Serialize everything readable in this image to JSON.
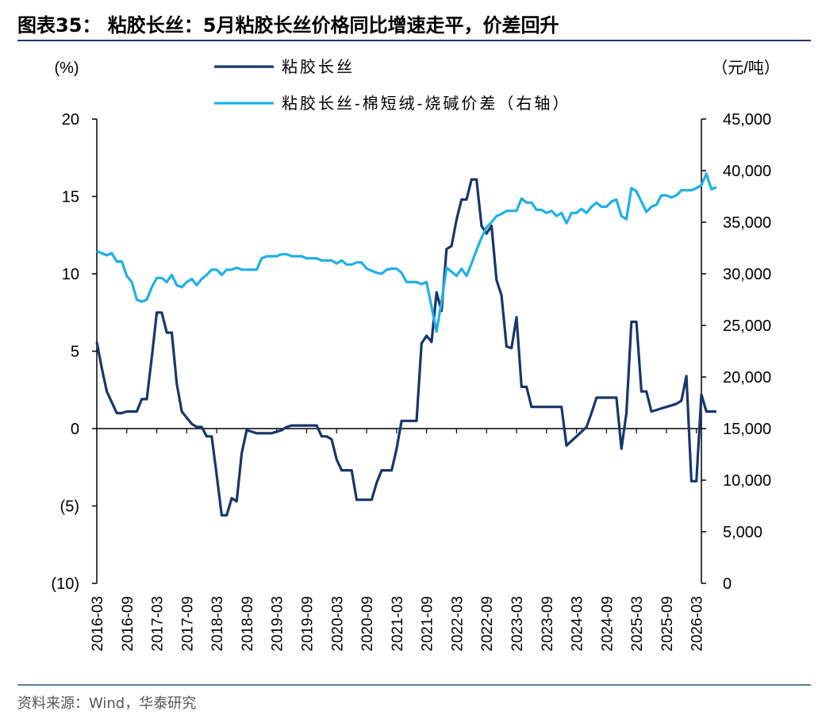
{
  "title": "图表35：  粘胶长丝：5月粘胶长丝价格同比增速走平，价差回升",
  "source": "资料来源：Wind，华泰研究",
  "colors": {
    "series1": "#17376b",
    "series2": "#1fb0e6",
    "axis": "#000000"
  },
  "chart_data": {
    "type": "line",
    "left_unit": "(%)",
    "right_unit": "（元/吨）",
    "ylim_left": [
      -10,
      20
    ],
    "yticks_left": [
      -10,
      -5,
      0,
      5,
      10,
      15,
      20
    ],
    "yticklabels_left": [
      "(10)",
      "(5)",
      "0",
      "5",
      "10",
      "15",
      "20"
    ],
    "ylim_right": [
      0,
      45000
    ],
    "yticks_right": [
      0,
      5000,
      10000,
      15000,
      20000,
      25000,
      30000,
      35000,
      40000,
      45000
    ],
    "yticklabels_right": [
      "0",
      "5,000",
      "10,000",
      "15,000",
      "20,000",
      "25,000",
      "30,000",
      "35,000",
      "40,000",
      "45,000"
    ],
    "x_start": "2016-03",
    "x_end": "2026-04",
    "xticklabels": [
      "2016-03",
      "2016-09",
      "2017-03",
      "2017-09",
      "2018-03",
      "2018-09",
      "2019-03",
      "2019-09",
      "2020-03",
      "2020-09",
      "2021-03",
      "2021-09",
      "2022-03",
      "2022-09",
      "2023-03",
      "2023-09",
      "2024-03",
      "2024-09",
      "2025-03",
      "2025-09",
      "2026-03"
    ],
    "series": [
      {
        "name": "粘胶长丝",
        "axis": "left",
        "points": [
          [
            "2016-03",
            5.6
          ],
          [
            "2016-04",
            3.9
          ],
          [
            "2016-05",
            2.4
          ],
          [
            "2016-06",
            1.7
          ],
          [
            "2016-07",
            1.0
          ],
          [
            "2016-08",
            1.0
          ],
          [
            "2016-09",
            1.1
          ],
          [
            "2016-10",
            1.1
          ],
          [
            "2016-11",
            1.1
          ],
          [
            "2016-12",
            1.9
          ],
          [
            "2017-01",
            1.9
          ],
          [
            "2017-02",
            4.6
          ],
          [
            "2017-03",
            7.5
          ],
          [
            "2017-04",
            7.5
          ],
          [
            "2017-05",
            6.2
          ],
          [
            "2017-06",
            6.2
          ],
          [
            "2017-07",
            2.9
          ],
          [
            "2017-08",
            1.1
          ],
          [
            "2017-09",
            0.7
          ],
          [
            "2017-10",
            0.3
          ],
          [
            "2017-11",
            0.1
          ],
          [
            "2017-12",
            0.1
          ],
          [
            "2018-01",
            -0.5
          ],
          [
            "2018-02",
            -0.5
          ],
          [
            "2018-03",
            -3.0
          ],
          [
            "2018-04",
            -5.6
          ],
          [
            "2018-05",
            -5.6
          ],
          [
            "2018-06",
            -4.5
          ],
          [
            "2018-07",
            -4.7
          ],
          [
            "2018-08",
            -1.6
          ],
          [
            "2018-09",
            -0.1
          ],
          [
            "2018-10",
            -0.2
          ],
          [
            "2018-11",
            -0.3
          ],
          [
            "2018-12",
            -0.3
          ],
          [
            "2019-01",
            -0.3
          ],
          [
            "2019-02",
            -0.3
          ],
          [
            "2019-03",
            -0.2
          ],
          [
            "2019-04",
            -0.1
          ],
          [
            "2019-05",
            0.1
          ],
          [
            "2019-06",
            0.2
          ],
          [
            "2019-07",
            0.2
          ],
          [
            "2019-08",
            0.2
          ],
          [
            "2019-09",
            0.2
          ],
          [
            "2019-10",
            0.2
          ],
          [
            "2019-11",
            0.2
          ],
          [
            "2019-12",
            -0.5
          ],
          [
            "2020-01",
            -0.5
          ],
          [
            "2020-02",
            -0.7
          ],
          [
            "2020-03",
            -2.0
          ],
          [
            "2020-04",
            -2.7
          ],
          [
            "2020-05",
            -2.7
          ],
          [
            "2020-06",
            -2.7
          ],
          [
            "2020-07",
            -4.6
          ],
          [
            "2020-08",
            -4.6
          ],
          [
            "2020-09",
            -4.6
          ],
          [
            "2020-10",
            -4.6
          ],
          [
            "2020-11",
            -3.5
          ],
          [
            "2020-12",
            -2.7
          ],
          [
            "2021-01",
            -2.7
          ],
          [
            "2021-02",
            -2.7
          ],
          [
            "2021-03",
            -1.3
          ],
          [
            "2021-04",
            0.5
          ],
          [
            "2021-05",
            0.5
          ],
          [
            "2021-06",
            0.5
          ],
          [
            "2021-07",
            0.5
          ],
          [
            "2021-08",
            5.5
          ],
          [
            "2021-09",
            6.0
          ],
          [
            "2021-10",
            5.6
          ],
          [
            "2021-11",
            8.8
          ],
          [
            "2021-12",
            7.6
          ],
          [
            "2022-01",
            11.6
          ],
          [
            "2022-02",
            11.8
          ],
          [
            "2022-03",
            13.5
          ],
          [
            "2022-04",
            14.8
          ],
          [
            "2022-05",
            14.8
          ],
          [
            "2022-06",
            16.1
          ],
          [
            "2022-07",
            16.1
          ],
          [
            "2022-08",
            13.1
          ],
          [
            "2022-09",
            12.6
          ],
          [
            "2022-10",
            13.1
          ],
          [
            "2022-11",
            9.6
          ],
          [
            "2022-12",
            8.6
          ],
          [
            "2023-01",
            5.3
          ],
          [
            "2023-02",
            5.2
          ],
          [
            "2023-03",
            7.2
          ],
          [
            "2023-04",
            2.7
          ],
          [
            "2023-05",
            2.7
          ],
          [
            "2023-06",
            1.4
          ],
          [
            "2023-07",
            1.4
          ],
          [
            "2023-08",
            1.4
          ],
          [
            "2023-09",
            1.4
          ],
          [
            "2023-10",
            1.4
          ],
          [
            "2023-11",
            1.4
          ],
          [
            "2023-12",
            1.4
          ],
          [
            "2024-01",
            -1.1
          ],
          [
            "2024-02",
            -0.8
          ],
          [
            "2024-03",
            -0.5
          ],
          [
            "2024-04",
            -0.2
          ],
          [
            "2024-05",
            0.1
          ],
          [
            "2024-06",
            1.0
          ],
          [
            "2024-07",
            2.0
          ],
          [
            "2024-08",
            2.0
          ],
          [
            "2024-09",
            2.0
          ],
          [
            "2024-10",
            2.0
          ],
          [
            "2024-11",
            2.0
          ],
          [
            "2024-12",
            -1.3
          ],
          [
            "2025-01",
            1.0
          ],
          [
            "2025-02",
            6.9
          ],
          [
            "2025-03",
            6.9
          ],
          [
            "2025-04",
            2.4
          ],
          [
            "2025-05",
            2.4
          ],
          [
            "2025-06",
            1.1
          ],
          [
            "2025-07",
            1.2
          ],
          [
            "2025-08",
            1.3
          ],
          [
            "2025-09",
            1.4
          ],
          [
            "2025-10",
            1.5
          ],
          [
            "2025-11",
            1.6
          ],
          [
            "2025-12",
            1.8
          ],
          [
            "2026-01",
            3.4
          ],
          [
            "2026-02",
            -3.4
          ],
          [
            "2026-03",
            -3.4
          ],
          [
            "2026-04",
            2.2
          ],
          [
            "2026-05",
            1.1
          ],
          [
            "2026-06",
            1.1
          ],
          [
            "2026-07",
            1.1
          ]
        ]
      },
      {
        "name": "粘胶长丝-棉短绒-烧碱价差（右轴）",
        "axis": "right",
        "points": [
          [
            "2016-03",
            32200
          ],
          [
            "2016-04",
            32000
          ],
          [
            "2016-05",
            31800
          ],
          [
            "2016-06",
            32000
          ],
          [
            "2016-07",
            31200
          ],
          [
            "2016-08",
            31200
          ],
          [
            "2016-09",
            29800
          ],
          [
            "2016-10",
            29200
          ],
          [
            "2016-11",
            27500
          ],
          [
            "2016-12",
            27300
          ],
          [
            "2017-01",
            27500
          ],
          [
            "2017-02",
            28700
          ],
          [
            "2017-03",
            29600
          ],
          [
            "2017-04",
            29600
          ],
          [
            "2017-05",
            29200
          ],
          [
            "2017-06",
            29900
          ],
          [
            "2017-07",
            28900
          ],
          [
            "2017-08",
            28700
          ],
          [
            "2017-09",
            29200
          ],
          [
            "2017-10",
            29500
          ],
          [
            "2017-11",
            28900
          ],
          [
            "2017-12",
            29500
          ],
          [
            "2018-01",
            29900
          ],
          [
            "2018-02",
            30400
          ],
          [
            "2018-03",
            30400
          ],
          [
            "2018-04",
            29900
          ],
          [
            "2018-05",
            30400
          ],
          [
            "2018-06",
            30400
          ],
          [
            "2018-07",
            30600
          ],
          [
            "2018-08",
            30400
          ],
          [
            "2018-09",
            30400
          ],
          [
            "2018-10",
            30400
          ],
          [
            "2018-11",
            30400
          ],
          [
            "2018-12",
            31500
          ],
          [
            "2019-01",
            31700
          ],
          [
            "2019-02",
            31700
          ],
          [
            "2019-03",
            31700
          ],
          [
            "2019-04",
            31900
          ],
          [
            "2019-05",
            31900
          ],
          [
            "2019-06",
            31700
          ],
          [
            "2019-07",
            31700
          ],
          [
            "2019-08",
            31700
          ],
          [
            "2019-09",
            31500
          ],
          [
            "2019-10",
            31500
          ],
          [
            "2019-11",
            31500
          ],
          [
            "2019-12",
            31300
          ],
          [
            "2020-01",
            31300
          ],
          [
            "2020-02",
            31300
          ],
          [
            "2020-03",
            31000
          ],
          [
            "2020-04",
            31300
          ],
          [
            "2020-05",
            30900
          ],
          [
            "2020-06",
            30900
          ],
          [
            "2020-07",
            31100
          ],
          [
            "2020-08",
            31100
          ],
          [
            "2020-09",
            30500
          ],
          [
            "2020-10",
            30300
          ],
          [
            "2020-11",
            30100
          ],
          [
            "2020-12",
            30000
          ],
          [
            "2021-01",
            30400
          ],
          [
            "2021-02",
            30500
          ],
          [
            "2021-03",
            30500
          ],
          [
            "2021-04",
            30100
          ],
          [
            "2021-05",
            29200
          ],
          [
            "2021-06",
            29200
          ],
          [
            "2021-07",
            29200
          ],
          [
            "2021-08",
            29000
          ],
          [
            "2021-09",
            29200
          ],
          [
            "2021-10",
            26800
          ],
          [
            "2021-11",
            24400
          ],
          [
            "2021-12",
            27300
          ],
          [
            "2022-01",
            30600
          ],
          [
            "2022-02",
            30200
          ],
          [
            "2022-03",
            29800
          ],
          [
            "2022-04",
            30500
          ],
          [
            "2022-05",
            29800
          ],
          [
            "2022-06",
            31000
          ],
          [
            "2022-07",
            32300
          ],
          [
            "2022-08",
            33500
          ],
          [
            "2022-09",
            34500
          ],
          [
            "2022-10",
            35000
          ],
          [
            "2022-11",
            35600
          ],
          [
            "2022-12",
            35800
          ],
          [
            "2023-01",
            36100
          ],
          [
            "2023-02",
            36100
          ],
          [
            "2023-03",
            36100
          ],
          [
            "2023-04",
            37300
          ],
          [
            "2023-05",
            36900
          ],
          [
            "2023-06",
            36900
          ],
          [
            "2023-07",
            36200
          ],
          [
            "2023-08",
            36200
          ],
          [
            "2023-09",
            35900
          ],
          [
            "2023-10",
            36100
          ],
          [
            "2023-11",
            35600
          ],
          [
            "2023-12",
            35900
          ],
          [
            "2024-01",
            34900
          ],
          [
            "2024-02",
            35900
          ],
          [
            "2024-03",
            35900
          ],
          [
            "2024-04",
            36300
          ],
          [
            "2024-05",
            35900
          ],
          [
            "2024-06",
            36500
          ],
          [
            "2024-07",
            36900
          ],
          [
            "2024-08",
            36500
          ],
          [
            "2024-09",
            36500
          ],
          [
            "2024-10",
            37000
          ],
          [
            "2024-11",
            37200
          ],
          [
            "2024-12",
            35600
          ],
          [
            "2025-01",
            35300
          ],
          [
            "2025-02",
            38300
          ],
          [
            "2025-03",
            38000
          ],
          [
            "2025-04",
            37000
          ],
          [
            "2025-05",
            36000
          ],
          [
            "2025-06",
            36500
          ],
          [
            "2025-07",
            36700
          ],
          [
            "2025-08",
            37600
          ],
          [
            "2025-09",
            37600
          ],
          [
            "2025-10",
            37400
          ],
          [
            "2025-11",
            37600
          ],
          [
            "2025-12",
            38100
          ],
          [
            "2026-01",
            38100
          ],
          [
            "2026-02",
            38100
          ],
          [
            "2026-03",
            38300
          ],
          [
            "2026-04",
            38600
          ],
          [
            "2026-05",
            39700
          ],
          [
            "2026-06",
            38200
          ],
          [
            "2026-07",
            38400
          ]
        ]
      }
    ],
    "legend_position": "top"
  }
}
